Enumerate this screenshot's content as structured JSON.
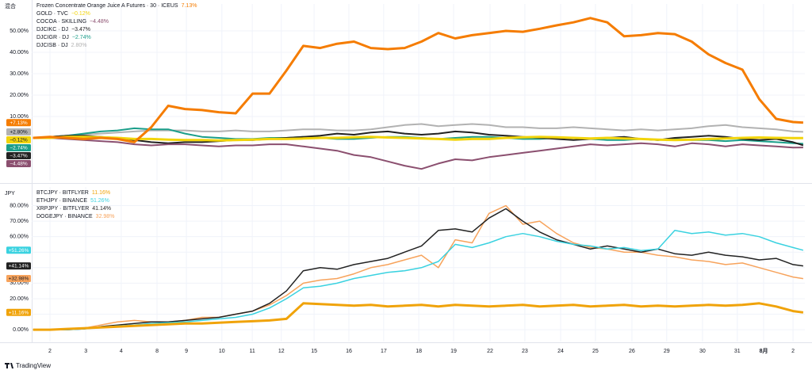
{
  "branding": "TradingView",
  "chart_data": [
    {
      "type": "line",
      "unit_label": "混合",
      "x": [
        -0.5,
        0,
        0.5,
        1,
        1.5,
        2,
        2.5,
        3,
        3.5,
        4,
        4.5,
        5,
        5.5,
        6,
        6.5,
        7,
        7.5,
        8,
        8.5,
        9,
        9.5,
        10,
        10.5,
        11,
        11.5,
        12,
        12.5,
        13,
        13.5,
        14,
        14.5,
        15,
        15.5,
        16,
        16.5,
        17,
        17.5,
        18,
        18.5,
        19,
        19.5,
        20,
        20.5,
        21,
        21.5,
        22,
        22.3
      ],
      "xlim": [
        -0.54,
        22.35
      ],
      "ylim": [
        -20,
        62.6
      ],
      "yticks": [
        {
          "value": 10,
          "label": "10.00%"
        },
        {
          "value": 20,
          "label": "20.00%"
        },
        {
          "value": 30,
          "label": "30.00%"
        },
        {
          "value": 40,
          "label": "40.00%"
        },
        {
          "value": 50,
          "label": "50.00%"
        }
      ],
      "grid": true,
      "series": [
        {
          "name": "Frozen Concentrate Orange Juice A Futures · 30 · ICEUS",
          "color": "#f57c00",
          "line_width": 3,
          "legend_label": "7.13%",
          "badge_label": "+7.13%",
          "values": [
            0,
            0.5,
            0,
            -0.5,
            0,
            -0.5,
            -2,
            5,
            15,
            13.5,
            13,
            12,
            11.5,
            20.7,
            20.7,
            31.5,
            43,
            42,
            44,
            45,
            42,
            41.5,
            42,
            45,
            49,
            46.5,
            48,
            49,
            50,
            49.6,
            51,
            52.6,
            54,
            56,
            54,
            47.5,
            48,
            49,
            48.5,
            45,
            39,
            35,
            31.9,
            18.1,
            8.9,
            7.4,
            7.13
          ]
        },
        {
          "name": "GOLD · TVC",
          "color": "#f2d40b",
          "line_width": 3,
          "legend_label": "−0.12%",
          "badge_label": "−0.12%",
          "values": [
            0,
            0,
            0.5,
            0.5,
            0.3,
            0,
            -0.5,
            -0.5,
            -0.8,
            -1,
            -1,
            -1.2,
            -1,
            -0.8,
            -0.5,
            -0.5,
            -0.3,
            0,
            0,
            0.3,
            0.5,
            0.2,
            0,
            -0.3,
            -0.5,
            -0.8,
            -0.5,
            -0.5,
            0,
            0.3,
            0.5,
            0.3,
            0,
            -0.3,
            0,
            -0.3,
            -0.5,
            -0.8,
            -1,
            -0.8,
            -0.5,
            -0.3,
            0,
            0.2,
            0,
            -0.1,
            -0.12
          ]
        },
        {
          "name": "COCOA · SKILLING",
          "color": "#8b4f6f",
          "line_width": 2,
          "legend_label": "−4.48%",
          "badge_label": "−4.48%",
          "values": [
            0,
            0,
            -0.5,
            -1,
            -1.5,
            -2,
            -3,
            -3.5,
            -3,
            -3,
            -3.5,
            -4,
            -3.5,
            -3.5,
            -3,
            -3,
            -4,
            -5,
            -6,
            -8,
            -9,
            -11,
            -13,
            -14.5,
            -12,
            -10,
            -10.5,
            -9,
            -8,
            -7,
            -6,
            -5,
            -4,
            -3,
            -3.5,
            -3,
            -2.5,
            -3,
            -4,
            -2.5,
            -3,
            -4,
            -3,
            -3.5,
            -4,
            -4.5,
            -4.48
          ]
        },
        {
          "name": "DJCIKC · DJ",
          "color": "#222222",
          "line_width": 2,
          "legend_label": "−3.47%",
          "badge_label": "−3.47%",
          "values": [
            0,
            0.5,
            1,
            1,
            0.5,
            0,
            -1,
            -2,
            -2.5,
            -2,
            -2,
            -1.5,
            -1,
            -1,
            -0.5,
            0,
            0.5,
            1,
            2,
            1.5,
            2.5,
            3,
            2,
            1.5,
            2,
            3,
            2.5,
            1.5,
            1,
            0.5,
            0,
            -0.5,
            -1,
            -0.5,
            0,
            0.5,
            -0.5,
            -1,
            0,
            0.5,
            1,
            0.5,
            -0.5,
            -1,
            -0.5,
            -2,
            -3.47
          ]
        },
        {
          "name": "DJCIGR · DJ",
          "color": "#1b9e8a",
          "line_width": 2,
          "legend_label": "−2.74%",
          "badge_label": "−2.74%",
          "values": [
            0,
            0.5,
            1,
            2,
            3,
            3.5,
            4.5,
            4,
            4,
            2,
            0.5,
            0,
            -0.5,
            -0.5,
            0,
            0,
            0.5,
            0,
            -0.5,
            -0.5,
            0,
            0.5,
            0.5,
            0,
            -0.5,
            0,
            0.5,
            0.5,
            0,
            -0.5,
            -0.5,
            0,
            0,
            -0.5,
            -1,
            -1,
            -0.5,
            -1,
            -0.5,
            -1,
            -1,
            -1.5,
            -1,
            -1.5,
            -2,
            -2.5,
            -2.74
          ]
        },
        {
          "name": "DJCISB · DJ",
          "color": "#b2b2b2",
          "line_width": 2,
          "legend_label": "2.80%",
          "badge_label": "+2.80%",
          "values": [
            0,
            0.5,
            1,
            1.5,
            2,
            2.5,
            3,
            3.5,
            3.5,
            3.5,
            3,
            3,
            3.5,
            3,
            3,
            3.5,
            4,
            4,
            3.5,
            3.5,
            4,
            5,
            6,
            6.5,
            5.5,
            6,
            6.5,
            6,
            5,
            5,
            4.5,
            4.5,
            5,
            4.5,
            4,
            3.5,
            4,
            3.5,
            4,
            4.5,
            5.5,
            6,
            5,
            4.5,
            4,
            3,
            2.8
          ]
        }
      ]
    },
    {
      "type": "line",
      "unit_label": "JPY",
      "x": [
        -0.5,
        0,
        0.5,
        1,
        1.5,
        2,
        2.5,
        3,
        3.5,
        4,
        4.5,
        5,
        5.5,
        6,
        6.5,
        7,
        7.5,
        8,
        8.5,
        9,
        9.5,
        10,
        10.5,
        11,
        11.5,
        12,
        12.5,
        13,
        13.5,
        14,
        14.5,
        15,
        15.5,
        16,
        16.5,
        17,
        17.5,
        18,
        18.5,
        19,
        19.5,
        20,
        20.5,
        21,
        21.5,
        22,
        22.3
      ],
      "xlim": [
        -0.54,
        22.35
      ],
      "ylim": [
        -7.6,
        92
      ],
      "xticks": [
        {
          "value": 0,
          "label": "2"
        },
        {
          "value": 1.06,
          "label": "3"
        },
        {
          "value": 2.11,
          "label": "4"
        },
        {
          "value": 3.17,
          "label": "8"
        },
        {
          "value": 4.04,
          "label": "9"
        },
        {
          "value": 5.09,
          "label": "10"
        },
        {
          "value": 5.99,
          "label": "11"
        },
        {
          "value": 6.85,
          "label": "12"
        },
        {
          "value": 7.82,
          "label": "15"
        },
        {
          "value": 8.85,
          "label": "16"
        },
        {
          "value": 9.88,
          "label": "17"
        },
        {
          "value": 10.92,
          "label": "18"
        },
        {
          "value": 11.95,
          "label": "19"
        },
        {
          "value": 13.03,
          "label": "22"
        },
        {
          "value": 14.06,
          "label": "23"
        },
        {
          "value": 15.12,
          "label": "24"
        },
        {
          "value": 16.15,
          "label": "25"
        },
        {
          "value": 17.23,
          "label": "26"
        },
        {
          "value": 18.26,
          "label": "29"
        },
        {
          "value": 19.32,
          "label": "30"
        },
        {
          "value": 20.35,
          "label": "31"
        },
        {
          "value": 21.13,
          "label": "8月"
        },
        {
          "value": 22.0,
          "label": "2"
        }
      ],
      "yticks": [
        {
          "value": 0,
          "label": "0.00%"
        },
        {
          "value": 10,
          "label": "10.00%"
        },
        {
          "value": 20,
          "label": "20.00%"
        },
        {
          "value": 30,
          "label": "30.00%"
        },
        {
          "value": 40,
          "label": "40.00%"
        },
        {
          "value": 50,
          "label": "50.00%"
        },
        {
          "value": 60,
          "label": "60.00%"
        },
        {
          "value": 70,
          "label": "70.00%"
        },
        {
          "value": 80,
          "label": "80.00%"
        }
      ],
      "grid": true,
      "series": [
        {
          "name": "BTCJPY · BITFLYER",
          "color": "#f0a30a",
          "line_width": 3,
          "legend_label": "11.16%",
          "badge_label": "+11.16%",
          "values": [
            0,
            0,
            0.5,
            1,
            1.5,
            2,
            2.5,
            3,
            3.5,
            4,
            4,
            4.5,
            5,
            5.5,
            6,
            7,
            17,
            16.5,
            16,
            15.5,
            16,
            15,
            15.5,
            16,
            15,
            16,
            15.5,
            15,
            15.5,
            16,
            15,
            15.5,
            16,
            15,
            15.5,
            16,
            15,
            15.5,
            15,
            15.5,
            16,
            15.5,
            16,
            17,
            15,
            12,
            11.16
          ]
        },
        {
          "name": "ETHJPY · BINANCE",
          "color": "#3ad2e0",
          "line_width": 1.5,
          "legend_label": "51.26%",
          "badge_label": "+51.26%",
          "values": [
            0,
            0,
            0,
            0.5,
            1.5,
            2.5,
            3,
            4,
            4.5,
            5,
            6,
            7,
            8,
            10,
            14,
            20,
            27,
            28,
            30,
            33,
            35,
            37,
            38,
            40,
            44,
            55,
            53,
            56,
            60,
            62,
            60,
            57,
            55,
            54,
            52,
            53,
            51,
            52,
            64,
            62,
            63,
            61,
            62,
            60,
            56,
            53,
            51.26
          ]
        },
        {
          "name": "XRPJPY · BITFLYER",
          "color": "#222222",
          "line_width": 1.5,
          "legend_label": "41.14%",
          "badge_label": "+41.14%",
          "values": [
            0,
            0,
            0,
            0.5,
            2,
            3,
            4,
            5,
            5,
            6,
            7,
            8,
            10,
            12,
            17,
            25,
            38,
            40,
            39,
            42,
            44,
            46,
            50,
            54,
            64,
            65,
            63,
            72,
            78,
            70,
            63,
            58,
            55,
            52,
            54,
            52,
            50,
            52,
            49,
            48,
            50,
            48,
            47,
            45,
            46,
            42,
            41.14
          ]
        },
        {
          "name": "DOGEJPY · BINANCE",
          "color": "#f7a35c",
          "line_width": 1.5,
          "legend_label": "32.98%",
          "badge_label": "+32.98%",
          "values": [
            0,
            0,
            0,
            1,
            3,
            5,
            6,
            5,
            5,
            6,
            8,
            8,
            10,
            12,
            16,
            22,
            30,
            32,
            33,
            36,
            40,
            42,
            45,
            48,
            40,
            58,
            56,
            75,
            80,
            68,
            70,
            62,
            56,
            53,
            52,
            50,
            50,
            48,
            47,
            45,
            44,
            42,
            43,
            40,
            37,
            34,
            32.98
          ]
        }
      ]
    }
  ]
}
